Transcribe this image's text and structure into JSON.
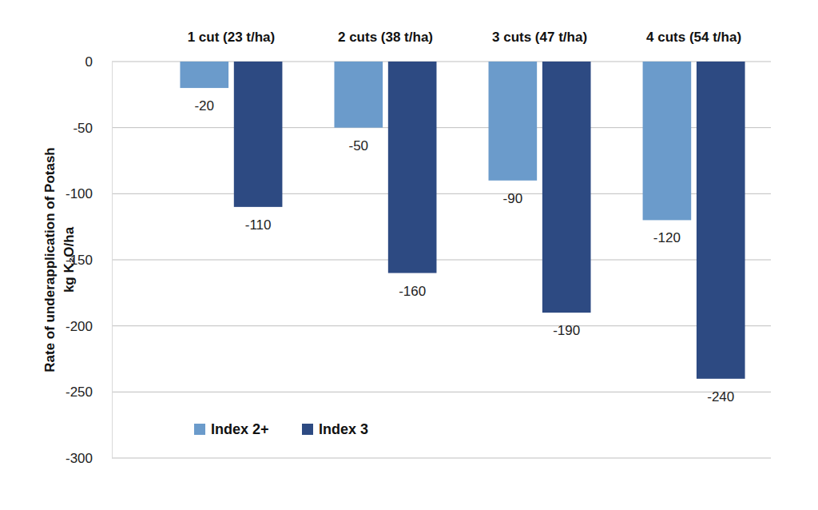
{
  "chart_data": {
    "type": "bar",
    "categories": [
      "1 cut (23 t/ha)",
      "2 cuts (38 t/ha)",
      "3 cuts (47 t/ha)",
      "4 cuts (54 t/ha)"
    ],
    "series": [
      {
        "name": "Index 2+",
        "color": "#6b9bcb",
        "values": [
          -20,
          -50,
          -90,
          -120
        ]
      },
      {
        "name": "Index 3",
        "color": "#2d4a82",
        "values": [
          -110,
          -160,
          -190,
          -240
        ]
      }
    ],
    "ylabel": [
      "Rate of underapplication of Potash",
      "kg K₂O/ha"
    ],
    "ylim": [
      -300,
      0
    ],
    "yticks": [
      0,
      -50,
      -100,
      -150,
      -200,
      -250,
      -300
    ],
    "grid": true,
    "legend": "bottom-left",
    "data_labels": true
  }
}
